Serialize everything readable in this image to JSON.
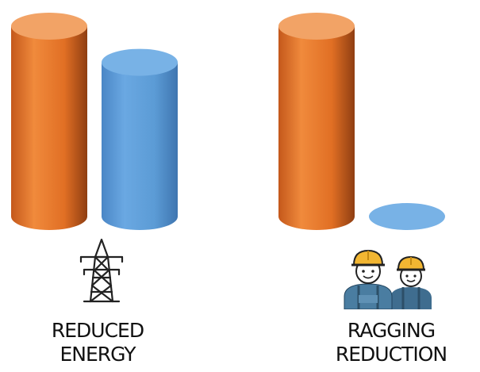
{
  "chart_data": {
    "type": "bar",
    "style": "3d-cylinder",
    "categories": [
      "REDUCED\nENERGY",
      "RAGGING\nREDUCTION"
    ],
    "category_lines": [
      [
        "REDUCED",
        "ENERGY"
      ],
      [
        "RAGGING",
        "REDUCTION"
      ]
    ],
    "series": [
      {
        "values": [
          100,
          100
        ],
        "color": "#e8762b"
      },
      {
        "values": [
          81,
          0
        ],
        "color": "#5b9bd5"
      }
    ],
    "ylim": [
      0,
      100
    ],
    "grid": false,
    "legend": "none",
    "icons": [
      "power-tower-icon",
      "workers-hardhat-icon"
    ]
  }
}
